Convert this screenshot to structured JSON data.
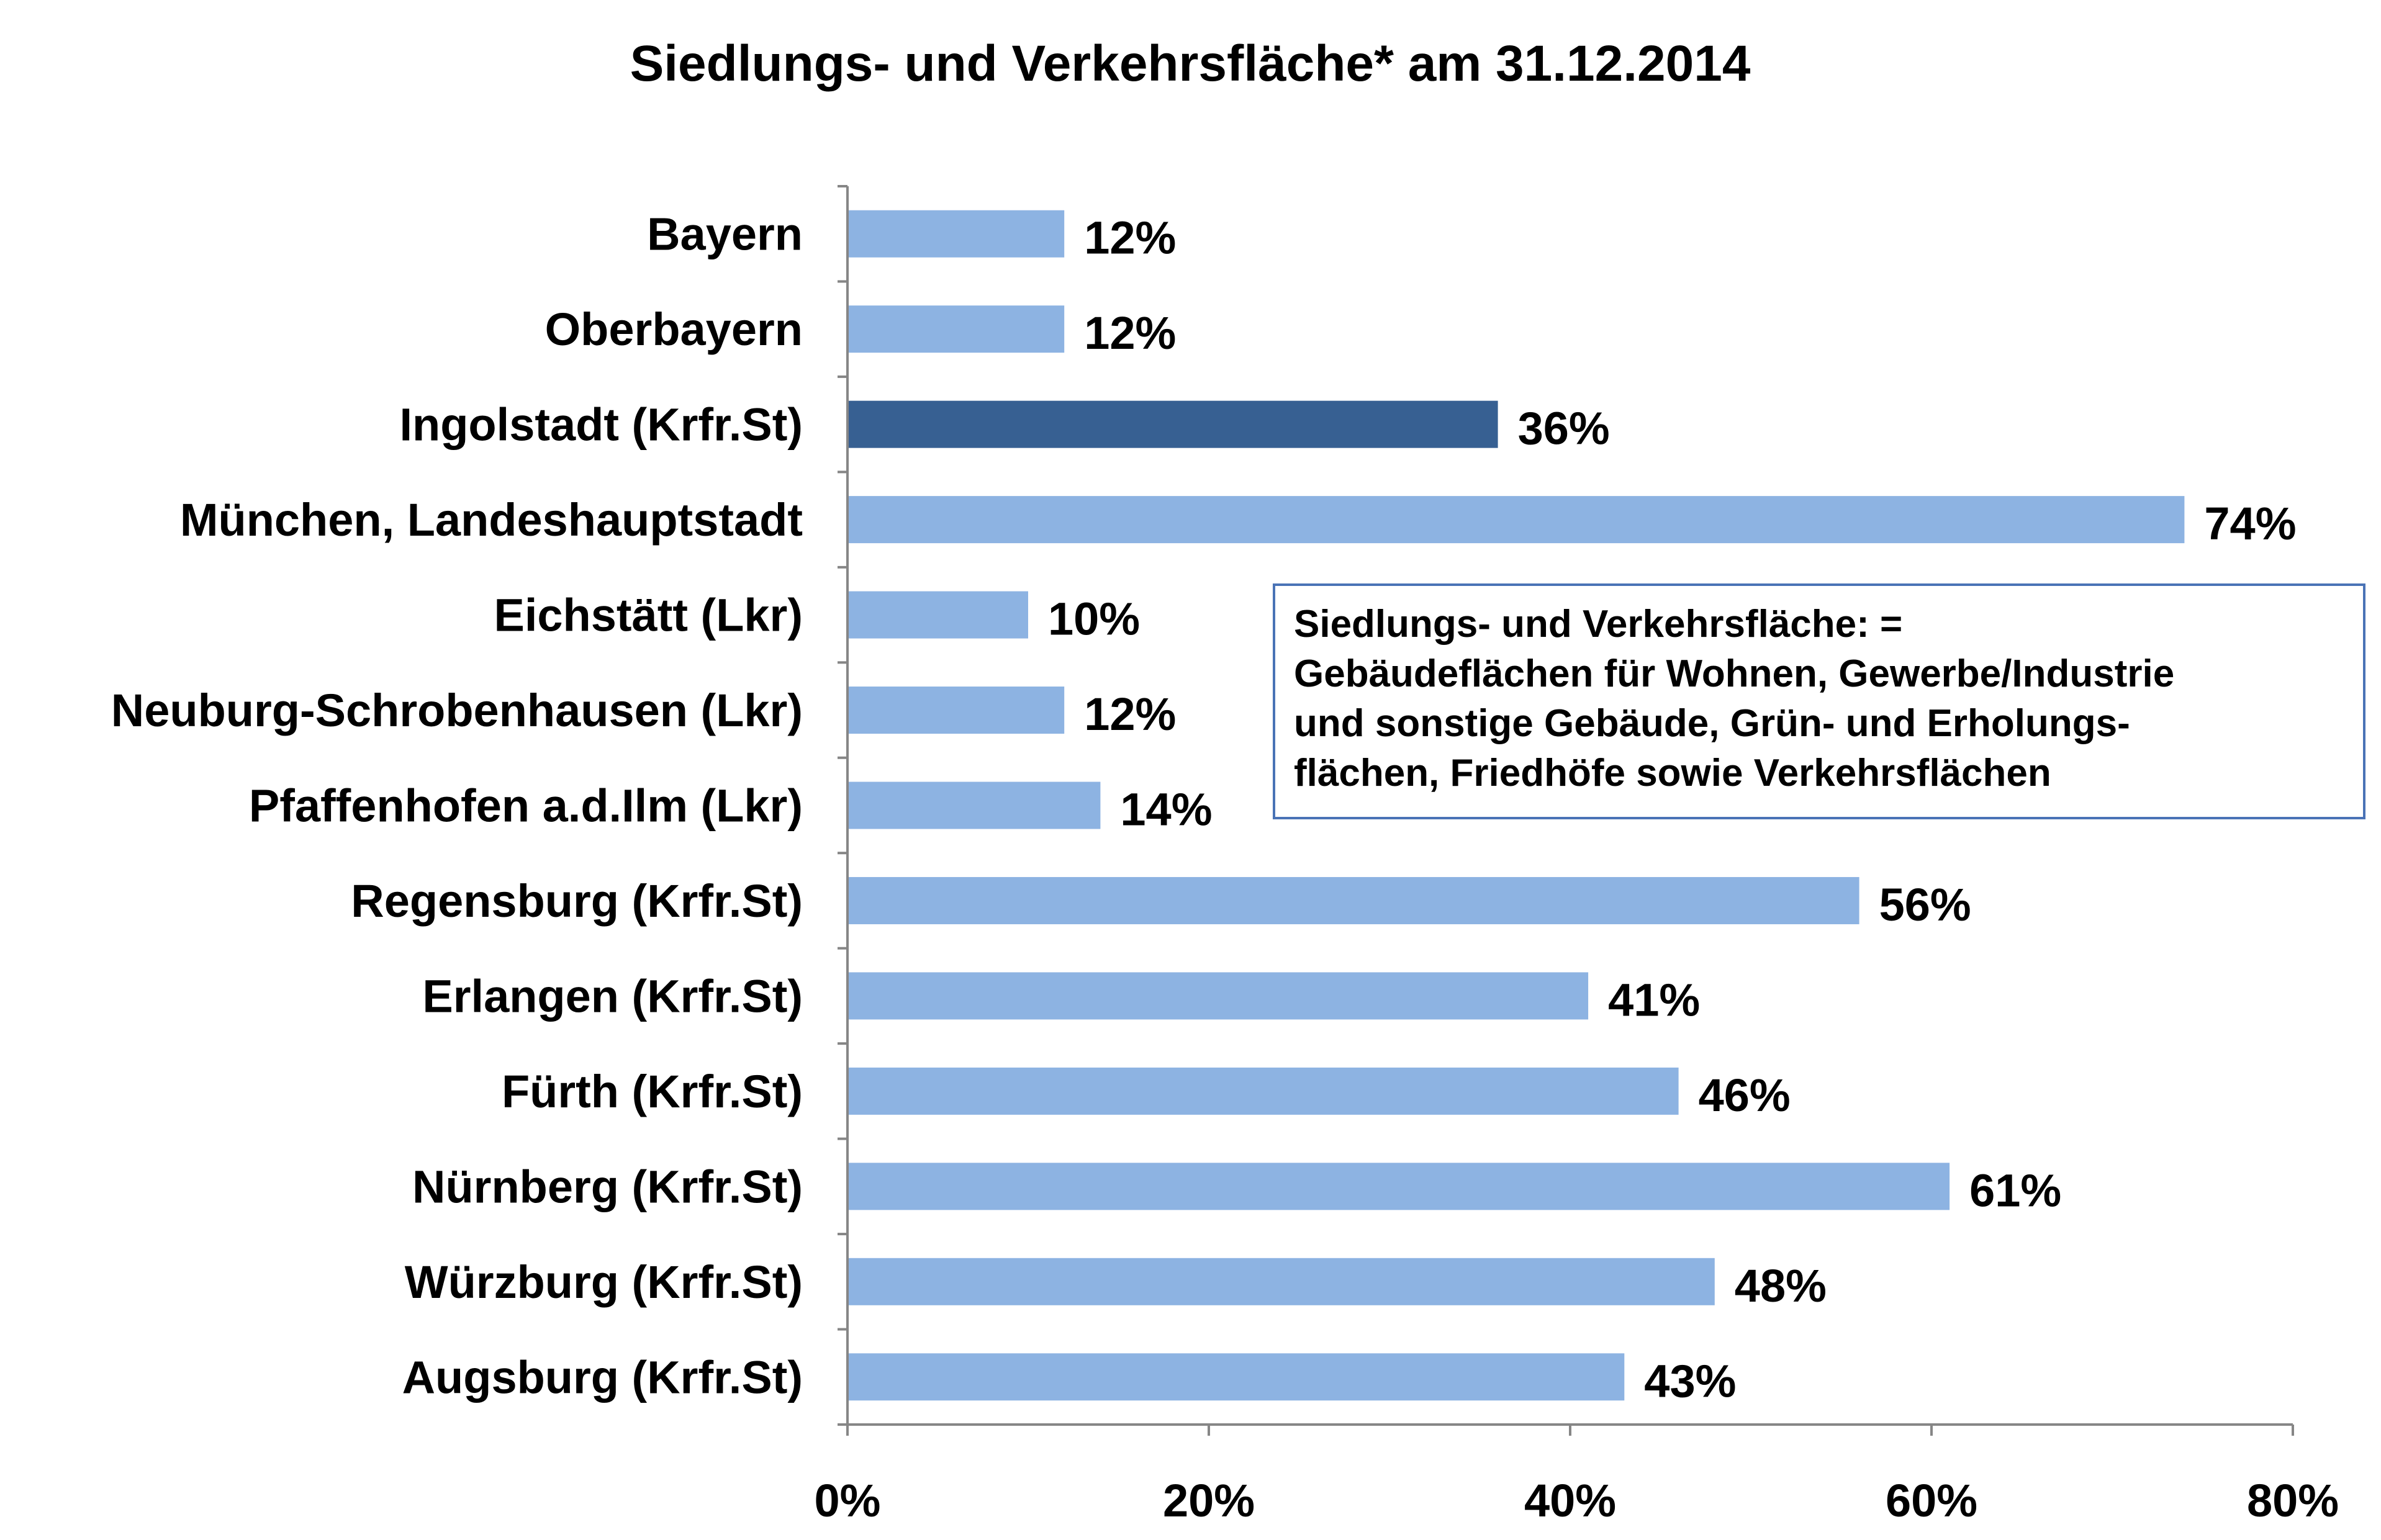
{
  "chart_data": {
    "type": "bar",
    "orientation": "horizontal",
    "title": "Siedlungs- und Verkehrsfläche* am 31.12.2014",
    "categories": [
      "Bayern",
      "Oberbayern",
      "Ingolstadt (Krfr.St)",
      "München, Landeshauptstadt",
      "Eichstätt (Lkr)",
      "Neuburg-Schrobenhausen (Lkr)",
      "Pfaffenhofen a.d.Ilm (Lkr)",
      "Regensburg (Krfr.St)",
      "Erlangen (Krfr.St)",
      "Fürth (Krfr.St)",
      "Nürnberg (Krfr.St)",
      "Würzburg (Krfr.St)",
      "Augsburg (Krfr.St)"
    ],
    "values": [
      12,
      12,
      36,
      74,
      10,
      12,
      14,
      56,
      41,
      46,
      61,
      48,
      43
    ],
    "value_labels": [
      "12%",
      "12%",
      "36%",
      "74%",
      "10%",
      "12%",
      "14%",
      "56%",
      "41%",
      "46%",
      "61%",
      "48%",
      "43%"
    ],
    "highlight_index": 2,
    "xlim": [
      0,
      80
    ],
    "xticks": [
      0,
      20,
      40,
      60,
      80
    ],
    "xtick_labels": [
      "0%",
      "20%",
      "40%",
      "60%",
      "80%"
    ],
    "grid": false,
    "colors": {
      "bar": "#8db3e2",
      "highlight": "#376092",
      "axis": "#868686"
    }
  },
  "note": {
    "lines": [
      "Siedlungs- und Verkehrsfläche: =",
      "Gebäudeflächen für Wohnen, Gewerbe/Industrie",
      "und sonstige Gebäude, Grün- und Erholungs-",
      "flächen, Friedhöfe sowie Verkehrsflächen"
    ]
  }
}
